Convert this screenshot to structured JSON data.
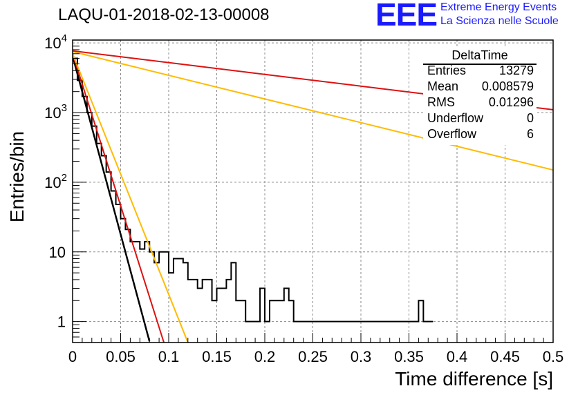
{
  "title": "LAQU-01-2018-02-13-00008",
  "logo": {
    "mark": "EEE",
    "line1": "Extreme Energy Events",
    "line2": "La Scienza nelle Scuole"
  },
  "stats": {
    "header": "DeltaTime",
    "rows": [
      {
        "key": "Entries",
        "value": "13279"
      },
      {
        "key": "Mean",
        "value": "0.008579"
      },
      {
        "key": "RMS",
        "value": "0.01296"
      },
      {
        "key": "Underflow",
        "value": "0"
      },
      {
        "key": "Overflow",
        "value": "6"
      }
    ]
  },
  "chart_data": {
    "type": "histogram",
    "xlabel": "Time difference [s]",
    "ylabel": "Entries/bin",
    "xlim": [
      0,
      0.5
    ],
    "ylim": [
      0.5,
      11000
    ],
    "yscale": "log",
    "grid": true,
    "x_ticks": [
      0,
      0.05,
      0.1,
      0.15,
      0.2,
      0.25,
      0.3,
      0.35,
      0.4,
      0.45,
      0.5
    ],
    "x_tick_labels": [
      "0",
      "0.05",
      "0.1",
      "0.15",
      "0.2",
      "0.25",
      "0.3",
      "0.35",
      "0.4",
      "0.45",
      "0.5"
    ],
    "y_ticks": [
      1,
      10,
      100,
      1000,
      10000
    ],
    "y_tick_labels": [
      "1",
      "10",
      "10^2",
      "10^3",
      "10^4"
    ],
    "histogram": {
      "color": "#000000",
      "bin_width": 0.005,
      "bins": [
        [
          0.0,
          0.005,
          6000
        ],
        [
          0.005,
          0.01,
          2900
        ],
        [
          0.01,
          0.015,
          1700
        ],
        [
          0.015,
          0.02,
          1000
        ],
        [
          0.02,
          0.025,
          640
        ],
        [
          0.025,
          0.03,
          360
        ],
        [
          0.03,
          0.035,
          240
        ],
        [
          0.035,
          0.04,
          140
        ],
        [
          0.04,
          0.045,
          75
        ],
        [
          0.045,
          0.05,
          48
        ],
        [
          0.05,
          0.055,
          30
        ],
        [
          0.055,
          0.06,
          21
        ],
        [
          0.06,
          0.065,
          14
        ],
        [
          0.065,
          0.07,
          14
        ],
        [
          0.07,
          0.075,
          11
        ],
        [
          0.075,
          0.08,
          14
        ],
        [
          0.08,
          0.085,
          10
        ],
        [
          0.085,
          0.09,
          7
        ],
        [
          0.09,
          0.095,
          10
        ],
        [
          0.095,
          0.1,
          10
        ],
        [
          0.1,
          0.105,
          5
        ],
        [
          0.105,
          0.11,
          8
        ],
        [
          0.11,
          0.115,
          8
        ],
        [
          0.115,
          0.12,
          7
        ],
        [
          0.12,
          0.125,
          4
        ],
        [
          0.125,
          0.13,
          4
        ],
        [
          0.13,
          0.135,
          3
        ],
        [
          0.135,
          0.14,
          4
        ],
        [
          0.14,
          0.145,
          4
        ],
        [
          0.145,
          0.15,
          2
        ],
        [
          0.15,
          0.155,
          3
        ],
        [
          0.155,
          0.16,
          3
        ],
        [
          0.16,
          0.165,
          4
        ],
        [
          0.165,
          0.17,
          7
        ],
        [
          0.17,
          0.175,
          2
        ],
        [
          0.175,
          0.18,
          2
        ],
        [
          0.18,
          0.185,
          1
        ],
        [
          0.185,
          0.19,
          1
        ],
        [
          0.19,
          0.195,
          1
        ],
        [
          0.195,
          0.2,
          3
        ],
        [
          0.2,
          0.205,
          1
        ],
        [
          0.205,
          0.21,
          2
        ],
        [
          0.21,
          0.215,
          2
        ],
        [
          0.215,
          0.22,
          2
        ],
        [
          0.22,
          0.225,
          3
        ],
        [
          0.225,
          0.23,
          2
        ],
        [
          0.23,
          0.235,
          1
        ],
        [
          0.235,
          0.24,
          1
        ],
        [
          0.24,
          0.245,
          1
        ],
        [
          0.245,
          0.25,
          1
        ],
        [
          0.25,
          0.255,
          1
        ],
        [
          0.255,
          0.26,
          1
        ],
        [
          0.26,
          0.265,
          1
        ],
        [
          0.265,
          0.27,
          1
        ],
        [
          0.27,
          0.275,
          1
        ],
        [
          0.275,
          0.28,
          1
        ],
        [
          0.28,
          0.285,
          1
        ],
        [
          0.285,
          0.29,
          1
        ],
        [
          0.29,
          0.295,
          1
        ],
        [
          0.295,
          0.3,
          1
        ],
        [
          0.3,
          0.305,
          1
        ],
        [
          0.305,
          0.31,
          1
        ],
        [
          0.31,
          0.315,
          1
        ],
        [
          0.315,
          0.32,
          1
        ],
        [
          0.32,
          0.325,
          1
        ],
        [
          0.325,
          0.33,
          1
        ],
        [
          0.33,
          0.335,
          1
        ],
        [
          0.335,
          0.34,
          1
        ],
        [
          0.34,
          0.345,
          1
        ],
        [
          0.345,
          0.35,
          1
        ],
        [
          0.35,
          0.355,
          1
        ],
        [
          0.355,
          0.36,
          1
        ],
        [
          0.36,
          0.365,
          2
        ],
        [
          0.365,
          0.37,
          1
        ],
        [
          0.37,
          0.375,
          1
        ]
      ]
    },
    "fits": [
      {
        "color": "#000000",
        "points": [
          [
            0,
            6500
          ],
          [
            0.08,
            0.52
          ]
        ]
      },
      {
        "color": "#dd1111",
        "points": [
          [
            0,
            7000
          ],
          [
            0.095,
            0.5
          ]
        ]
      },
      {
        "color": "#ffbb00",
        "points": [
          [
            0,
            7000
          ],
          [
            0.12,
            0.5
          ]
        ]
      },
      {
        "color": "#ffbb00",
        "points": [
          [
            0,
            7500
          ],
          [
            0.5,
            150
          ]
        ]
      },
      {
        "color": "#dd1111",
        "points": [
          [
            0,
            7700
          ],
          [
            0.5,
            1100
          ]
        ]
      }
    ]
  }
}
